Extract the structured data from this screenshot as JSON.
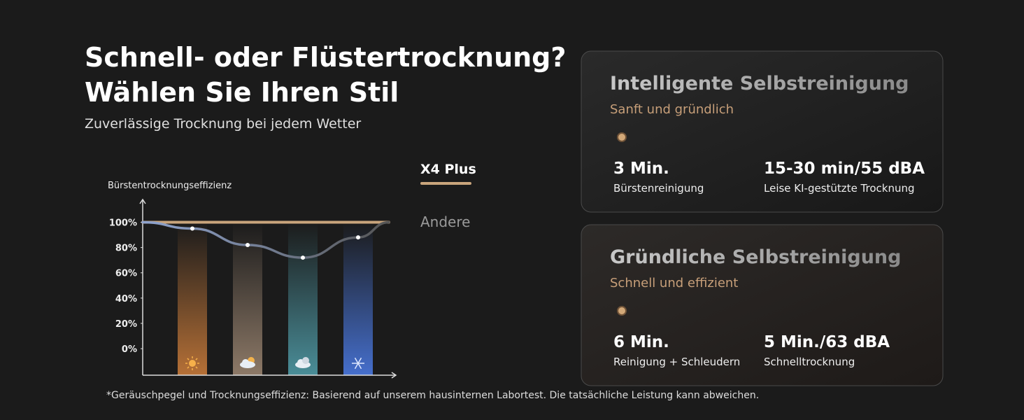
{
  "header": {
    "title_line1": "Schnell- oder Flüstertrocknung?",
    "title_line2": "Wählen Sie Ihren Stil",
    "subtitle": "Zuverlässige Trocknung bei jedem Wetter"
  },
  "chart_data": {
    "type": "line",
    "y_label": "Bürstentrocknungseffizienz",
    "categories": [
      null,
      null,
      null,
      null,
      null,
      null
    ],
    "series": [
      {
        "name": "X4 Plus",
        "color": "#c9a57c",
        "values": [
          100,
          100,
          100,
          100,
          100,
          100
        ]
      },
      {
        "name": "Andere",
        "color": "#8b9bbb",
        "values": [
          100,
          95,
          82,
          72,
          88,
          100
        ]
      }
    ],
    "ylim": [
      -21,
      118
    ],
    "yticks": [
      {
        "value": 100,
        "label": "100%"
      },
      {
        "value": 80,
        "label": "80%"
      },
      {
        "value": 60,
        "label": "60%"
      },
      {
        "value": 40,
        "label": "40%"
      },
      {
        "value": 20,
        "label": "20%"
      },
      {
        "value": 0,
        "label": "0%"
      }
    ],
    "legend": "right"
  },
  "cards": [
    {
      "title": "Intelligente Selbstreinigung",
      "subtitle": "Sanft und gründlich",
      "stats": [
        {
          "value": "3 Min.",
          "label": "Bürstenreinigung"
        },
        {
          "value": "15-30 min/55 dBA",
          "label": "Leise KI-gestützte Trocknung"
        }
      ]
    },
    {
      "title": "Gründliche Selbstreinigung",
      "subtitle": "Schnell und effizient",
      "stats": [
        {
          "value": "6 Min.",
          "label": "Reinigung + Schleudern"
        },
        {
          "value": "5 Min./63 dBA",
          "label": "Schnelltrocknung"
        }
      ]
    }
  ],
  "footnote": "*Geräuschpegel und Trocknungseffizienz: Basierend auf unserem hausinternen Labortest. Die tatsächliche Leistung kann abweichen."
}
